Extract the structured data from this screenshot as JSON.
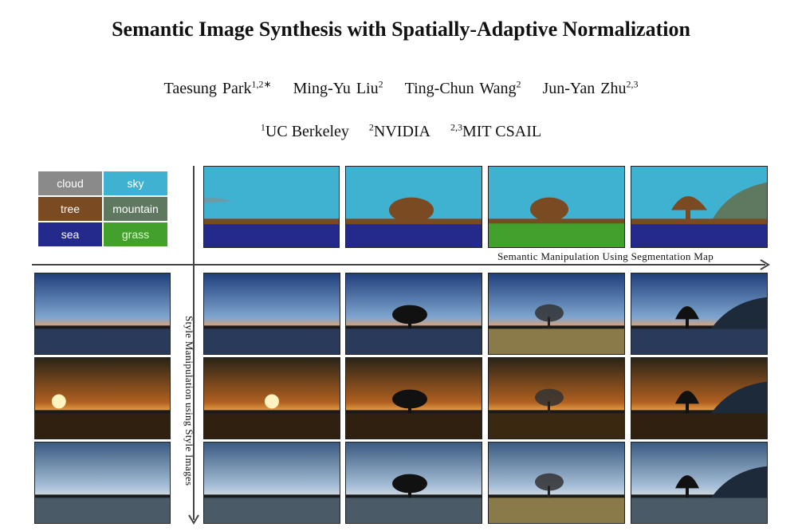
{
  "title": "Semantic Image Synthesis with Spatially-Adaptive Normalization",
  "authors": [
    {
      "name": "Taesung Park",
      "sup": "1,2∗"
    },
    {
      "name": "Ming-Yu Liu",
      "sup": "2"
    },
    {
      "name": "Ting-Chun Wang",
      "sup": "2"
    },
    {
      "name": "Jun-Yan Zhu",
      "sup": "2,3"
    }
  ],
  "affiliations": [
    {
      "sup": "1",
      "name": "UC Berkeley"
    },
    {
      "sup": "2",
      "name": "NVIDIA"
    },
    {
      "sup": "2,3",
      "name": "MIT CSAIL"
    }
  ],
  "legend": [
    {
      "label": "cloud",
      "color": "#8a8a8a"
    },
    {
      "label": "sky",
      "color": "#3fb2d2"
    },
    {
      "label": "tree",
      "color": "#7a4a22"
    },
    {
      "label": "mountain",
      "color": "#5f7860"
    },
    {
      "label": "sea",
      "color": "#232a8c"
    },
    {
      "label": "grass",
      "color": "#44a02c"
    }
  ],
  "figure": {
    "horizontal_axis_label": "Semantic Manipulation Using Segmentation Map",
    "vertical_axis_label": "Style Manipulation using Style Images"
  }
}
